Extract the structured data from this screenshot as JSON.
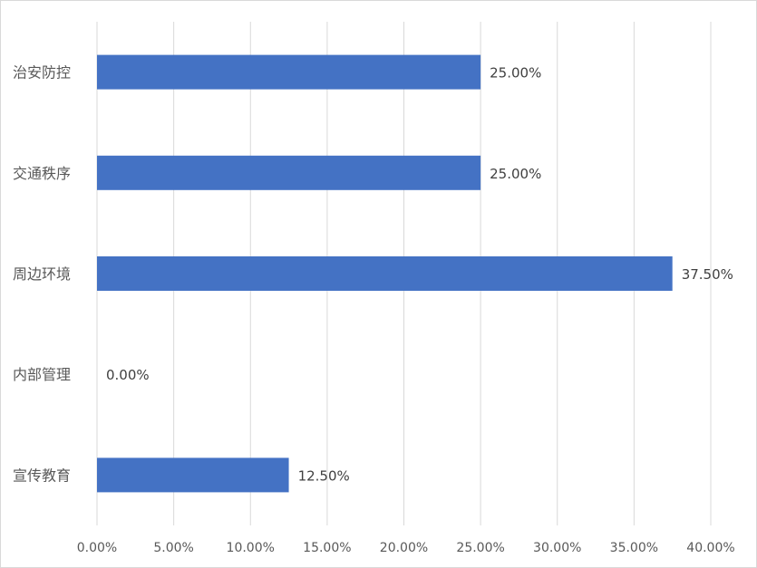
{
  "chart_data": {
    "type": "bar",
    "orientation": "horizontal",
    "categories": [
      "治安防控",
      "交通秩序",
      "周边环境",
      "内部管理",
      "宣传教育"
    ],
    "values": [
      25.0,
      25.0,
      37.5,
      0.0,
      12.5
    ],
    "data_labels": [
      "25.00%",
      "25.00%",
      "37.50%",
      "0.00%",
      "12.50%"
    ],
    "x_ticks": [
      "0.00%",
      "5.00%",
      "10.00%",
      "15.00%",
      "20.00%",
      "25.00%",
      "30.00%",
      "35.00%",
      "40.00%"
    ],
    "xlim": [
      0,
      40
    ],
    "title": "",
    "xlabel": "",
    "ylabel": "",
    "grid": "vertical",
    "legend": "none",
    "bar_color": "#4472c4",
    "grid_color": "#d9d9d9"
  }
}
